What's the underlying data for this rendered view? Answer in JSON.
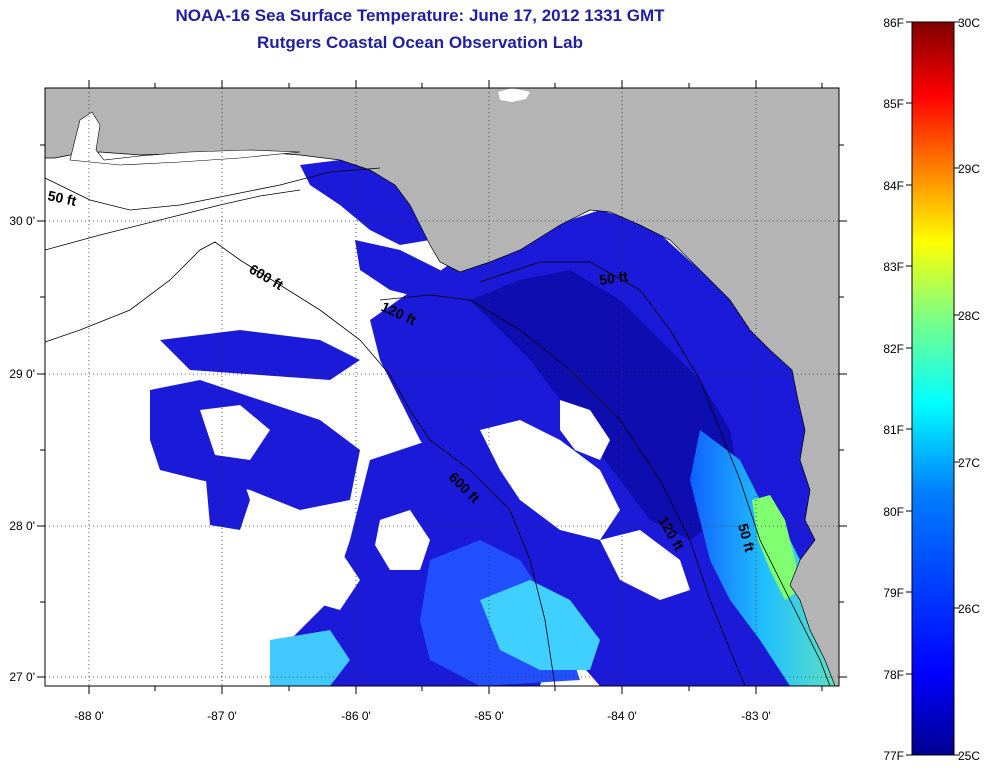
{
  "header": {
    "title": "NOAA-16 Sea Surface Temperature:  June 17, 2012 1331 GMT",
    "subtitle": "Rutgers Coastal Ocean Observation Lab"
  },
  "map": {
    "lon_ticks": [
      "-88 0'",
      "-87 0'",
      "-86 0'",
      "-85 0'",
      "-84 0'",
      "-83 0'"
    ],
    "lat_ticks": [
      "30 0'",
      "29 0'",
      "28 0'",
      "27 0'"
    ],
    "lon_range": [
      -88.35,
      -82.45
    ],
    "lat_range": [
      26.95,
      30.85
    ],
    "contour_labels": [
      "50 ft",
      "600 ft",
      "120 ft",
      "50 ft",
      "600 ft",
      "120 ft",
      "50 ft"
    ],
    "colors": {
      "land": "#b4b4b4",
      "cloud": "#ffffff",
      "frame": "#000000"
    }
  },
  "colorbar": {
    "fahrenheit_labels": [
      "86F",
      "85F",
      "84F",
      "83F",
      "82F",
      "81F",
      "80F",
      "79F",
      "78F",
      "77F"
    ],
    "celsius_labels": [
      "30C",
      "29C",
      "28C",
      "27C",
      "26C",
      "25C"
    ],
    "gradient": [
      "#00008f",
      "#0000ff",
      "#0080ff",
      "#00ffff",
      "#80ff80",
      "#ffff00",
      "#ff8000",
      "#ff0000",
      "#800000"
    ]
  }
}
